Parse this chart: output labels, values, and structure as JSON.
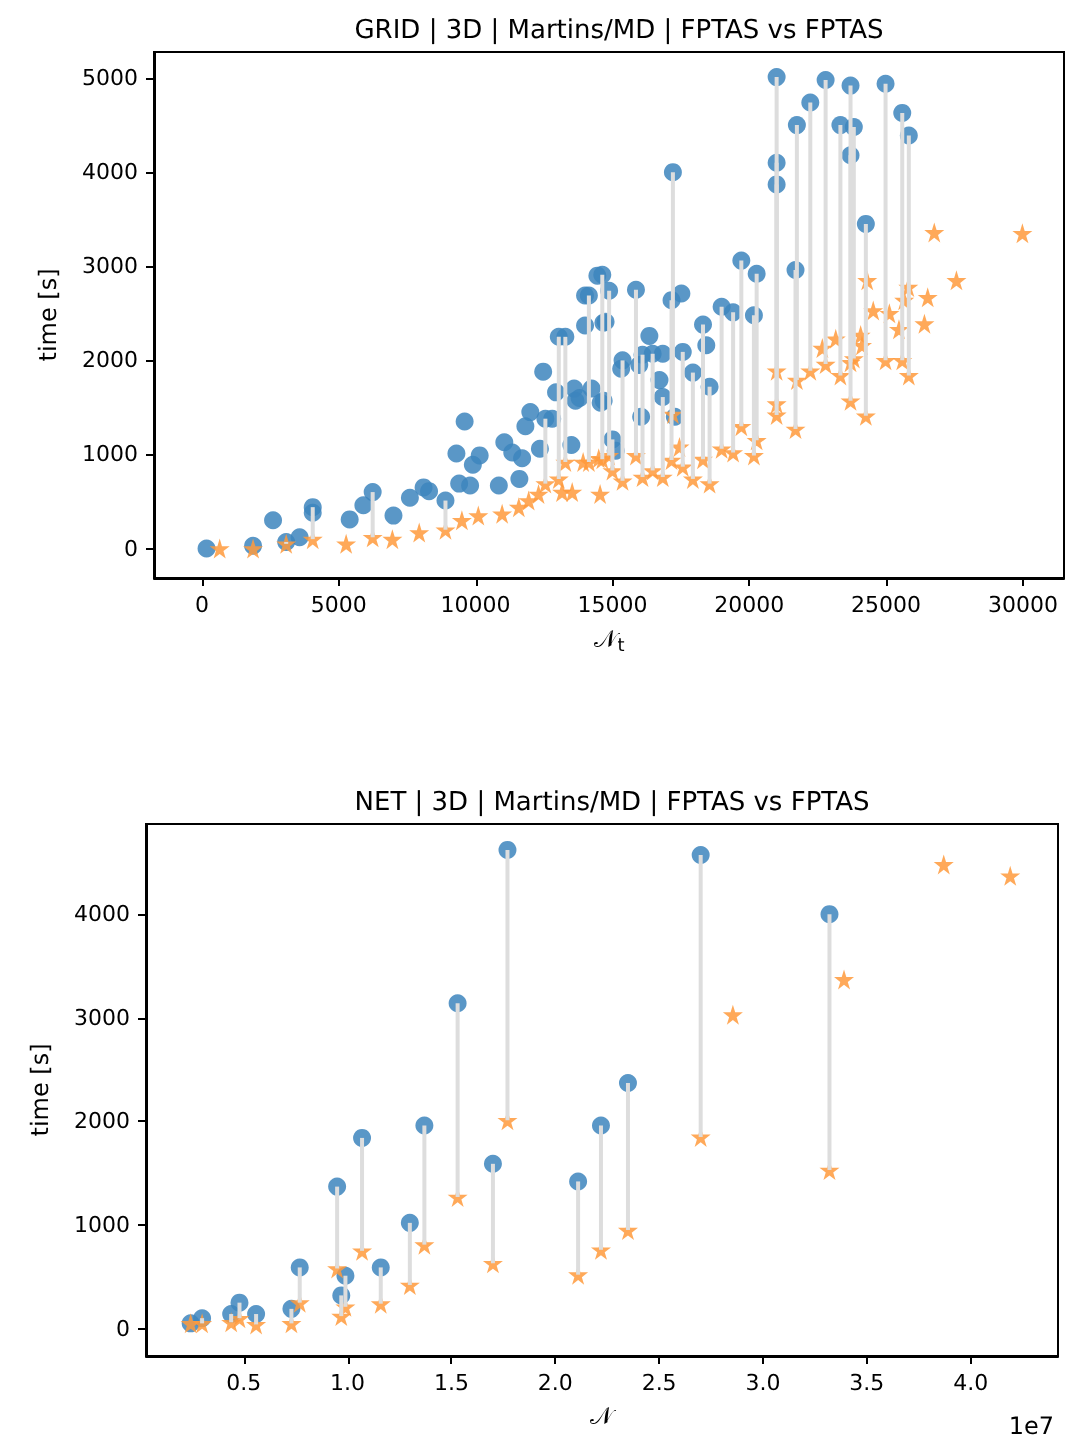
{
  "chart_data": [
    {
      "type": "scatter",
      "title": "GRID | 3D | Martins/MD | FPTAS vs FPTAS",
      "xlabel": "𝒩$_{t}$",
      "ylabel": "time [s]",
      "xlim": [
        -1750,
        31500
      ],
      "ylim": [
        -313,
        5277
      ],
      "xticks": [
        0,
        5000,
        10000,
        15000,
        20000,
        25000,
        30000
      ],
      "yticks": [
        0,
        1000,
        2000,
        3000,
        4000,
        5000
      ],
      "series": [
        {
          "color": "#3d85bd",
          "marker": "circle",
          "x": [
            170,
            1870,
            2600,
            3080,
            3570,
            4050,
            4050,
            5400,
            5900,
            6240,
            7000,
            7600,
            8100,
            8300,
            8900,
            9300,
            9400,
            9600,
            9800,
            9900,
            10150,
            10850,
            11050,
            11340,
            11600,
            11700,
            11820,
            12000,
            12350,
            12470,
            12550,
            12800,
            12940,
            13040,
            13500,
            13600,
            13650,
            13800,
            14000,
            14000,
            14240,
            14450,
            14570,
            14670,
            13280,
            14140,
            14630,
            14880,
            14750,
            15370,
            15320,
            15860,
            15980,
            16100,
            16350,
            16470,
            16720,
            16840,
            16050,
            16840,
            17210,
            17160,
            17280,
            17520,
            17570,
            17940,
            18310,
            18430,
            18550,
            18990,
            19410,
            19710,
            20170,
            20270,
            21000,
            21000,
            21000,
            21690,
            21740,
            22230,
            22790,
            23330,
            23700,
            23700,
            23820,
            24260,
            24980,
            25590,
            25830,
            15000,
            15120,
            14680
          ],
          "values": [
            0,
            30,
            300,
            70,
            120,
            440,
            380,
            310,
            460,
            600,
            350,
            540,
            650,
            610,
            510,
            1010,
            690,
            1350,
            670,
            890,
            990,
            670,
            1130,
            1020,
            740,
            960,
            1300,
            1450,
            1060,
            1880,
            1380,
            1380,
            1660,
            2250,
            1100,
            1700,
            1570,
            1600,
            2370,
            2690,
            1700,
            2900,
            1550,
            2400,
            2250,
            2690,
            2910,
            2740,
            2410,
            2000,
            1910,
            2750,
            1950,
            2060,
            2260,
            2070,
            1790,
            1610,
            1400,
            2070,
            4000,
            2640,
            1400,
            2710,
            2090,
            1870,
            2380,
            2160,
            1720,
            2570,
            2510,
            3060,
            2480,
            2920,
            5010,
            4100,
            3870,
            2960,
            4500,
            4740,
            4980,
            4500,
            4920,
            4180,
            4480,
            3450,
            4940,
            4630,
            4390,
            1160,
            1040,
            1570
          ]
        },
        {
          "color": "#ff9a3c",
          "marker": "star",
          "x": [
            650,
            1870,
            3080,
            4050,
            5270,
            6240,
            6960,
            7940,
            8900,
            9500,
            10100,
            10970,
            11580,
            11940,
            12300,
            12550,
            13040,
            13160,
            13530,
            13930,
            14500,
            14550,
            13280,
            14140,
            14630,
            14880,
            15000,
            15370,
            15860,
            16100,
            16470,
            16840,
            17210,
            17450,
            17160,
            17570,
            17940,
            18310,
            18550,
            18990,
            19410,
            19710,
            20170,
            20270,
            21000,
            21000,
            21000,
            21690,
            21740,
            22230,
            22670,
            22790,
            23160,
            23330,
            23700,
            23700,
            23820,
            24070,
            24120,
            24260,
            24310,
            24530,
            24980,
            25120,
            25470,
            25590,
            25660,
            25810,
            25830,
            26400,
            26520,
            26760,
            27570,
            29980
          ],
          "values": [
            0,
            0,
            50,
            100,
            50,
            120,
            100,
            170,
            200,
            300,
            350,
            370,
            440,
            510,
            580,
            690,
            740,
            600,
            600,
            920,
            960,
            580,
            920,
            920,
            950,
            990,
            830,
            720,
            990,
            760,
            830,
            760,
            1430,
            1080,
            940,
            870,
            740,
            950,
            690,
            1060,
            1020,
            1300,
            990,
            1150,
            1890,
            1540,
            1420,
            1270,
            1790,
            1890,
            2130,
            1960,
            2230,
            1840,
            1980,
            1570,
            2020,
            2270,
            2160,
            1410,
            2850,
            2530,
            2000,
            2500,
            2330,
            2000,
            2640,
            2780,
            1840,
            2390,
            2670,
            3360,
            2850,
            3350
          ],
          "errors": [
            null,
            null,
            [
              50,
              70
            ],
            [
              100,
              440
            ],
            null,
            [
              120,
              600
            ],
            null,
            null,
            [
              200,
              510
            ],
            null,
            null,
            null,
            null,
            null,
            null,
            [
              690,
              1380
            ],
            [
              740,
              2250
            ],
            null,
            null,
            null,
            null,
            null,
            [
              920,
              2250
            ],
            [
              920,
              2690
            ],
            [
              950,
              2910
            ],
            [
              990,
              2740
            ],
            [
              830,
              1160
            ],
            [
              720,
              2000
            ],
            [
              990,
              2750
            ],
            [
              760,
              2060
            ],
            [
              830,
              2070
            ],
            [
              760,
              1610
            ],
            [
              1430,
              4000
            ],
            null,
            [
              940,
              2640
            ],
            [
              870,
              2090
            ],
            [
              740,
              1870
            ],
            [
              950,
              2380
            ],
            [
              690,
              1720
            ],
            [
              1060,
              2570
            ],
            [
              1020,
              2510
            ],
            [
              1300,
              3060
            ],
            [
              990,
              2480
            ],
            [
              1150,
              2920
            ],
            [
              1890,
              5010
            ],
            [
              1540,
              4100
            ],
            [
              1420,
              3870
            ],
            [
              1270,
              2960
            ],
            [
              1790,
              4500
            ],
            [
              1890,
              4740
            ],
            null,
            [
              1960,
              4980
            ],
            null,
            [
              1840,
              4500
            ],
            [
              1980,
              4920
            ],
            [
              1570,
              4180
            ],
            [
              2020,
              4480
            ],
            null,
            null,
            [
              1410,
              3450
            ],
            null,
            null,
            [
              2000,
              4940
            ],
            null,
            null,
            [
              2000,
              4630
            ],
            null,
            null,
            [
              1840,
              4390
            ],
            null,
            null,
            null,
            null,
            null
          ]
        }
      ]
    },
    {
      "type": "scatter",
      "title": "NET | 3D | Martins/MD | FPTAS vs FPTAS",
      "xlabel": "𝒩",
      "ylabel": "time [s]",
      "xlim": [
        0.03,
        4.42
      ],
      "ylim": [
        -265,
        4870
      ],
      "xticks": [
        0.5,
        {
          "value": 1,
          "label": "1.0"
        },
        1.5,
        {
          "value": 2,
          "label": "2.0"
        },
        2.5,
        {
          "value": 3,
          "label": "3.0"
        },
        3.5,
        {
          "value": 4,
          "label": "4.0"
        }
      ],
      "yticks": [
        0,
        1000,
        2000,
        3000,
        4000
      ],
      "annotations": [
        "1e7"
      ],
      "series": [
        {
          "color": "#3d85bd",
          "marker": "circle",
          "x": [
            0.245,
            0.3,
            0.44,
            0.48,
            0.56,
            0.73,
            0.77,
            0.95,
            0.97,
            0.99,
            1.07,
            1.16,
            1.3,
            1.37,
            1.53,
            1.7,
            1.77,
            2.11,
            2.22,
            2.35,
            2.7,
            3.32
          ],
          "values": [
            50,
            100,
            140,
            250,
            140,
            190,
            590,
            1370,
            320,
            510,
            1840,
            590,
            1020,
            1960,
            3140,
            1590,
            4620,
            1420,
            1960,
            2370,
            4570,
            4000
          ]
        },
        {
          "color": "#ff9a3c",
          "marker": "star",
          "x": [
            0.245,
            0.3,
            0.44,
            0.48,
            0.56,
            0.73,
            0.77,
            0.95,
            0.97,
            0.99,
            1.07,
            1.16,
            1.3,
            1.37,
            1.53,
            1.7,
            1.77,
            2.11,
            2.22,
            2.35,
            2.7,
            2.855,
            3.32,
            3.39,
            3.87,
            4.19
          ],
          "values": [
            50,
            50,
            60,
            100,
            40,
            50,
            250,
            580,
            120,
            210,
            750,
            240,
            420,
            810,
            1270,
            630,
            2010,
            520,
            760,
            950,
            1850,
            3030,
            1530,
            3370,
            4480,
            4370
          ],
          "errors": [
            null,
            [
              50,
              100
            ],
            [
              60,
              140
            ],
            [
              100,
              250
            ],
            [
              40,
              140
            ],
            [
              50,
              190
            ],
            [
              250,
              590
            ],
            [
              580,
              1370
            ],
            [
              120,
              320
            ],
            [
              210,
              510
            ],
            [
              750,
              1840
            ],
            [
              240,
              590
            ],
            [
              420,
              1020
            ],
            [
              810,
              1960
            ],
            [
              1270,
              3140
            ],
            [
              630,
              1590
            ],
            [
              2010,
              4620
            ],
            [
              520,
              1420
            ],
            [
              760,
              1960
            ],
            [
              950,
              2370
            ],
            [
              1850,
              4570
            ],
            null,
            [
              1530,
              4000
            ],
            null,
            null,
            null
          ]
        }
      ]
    }
  ]
}
